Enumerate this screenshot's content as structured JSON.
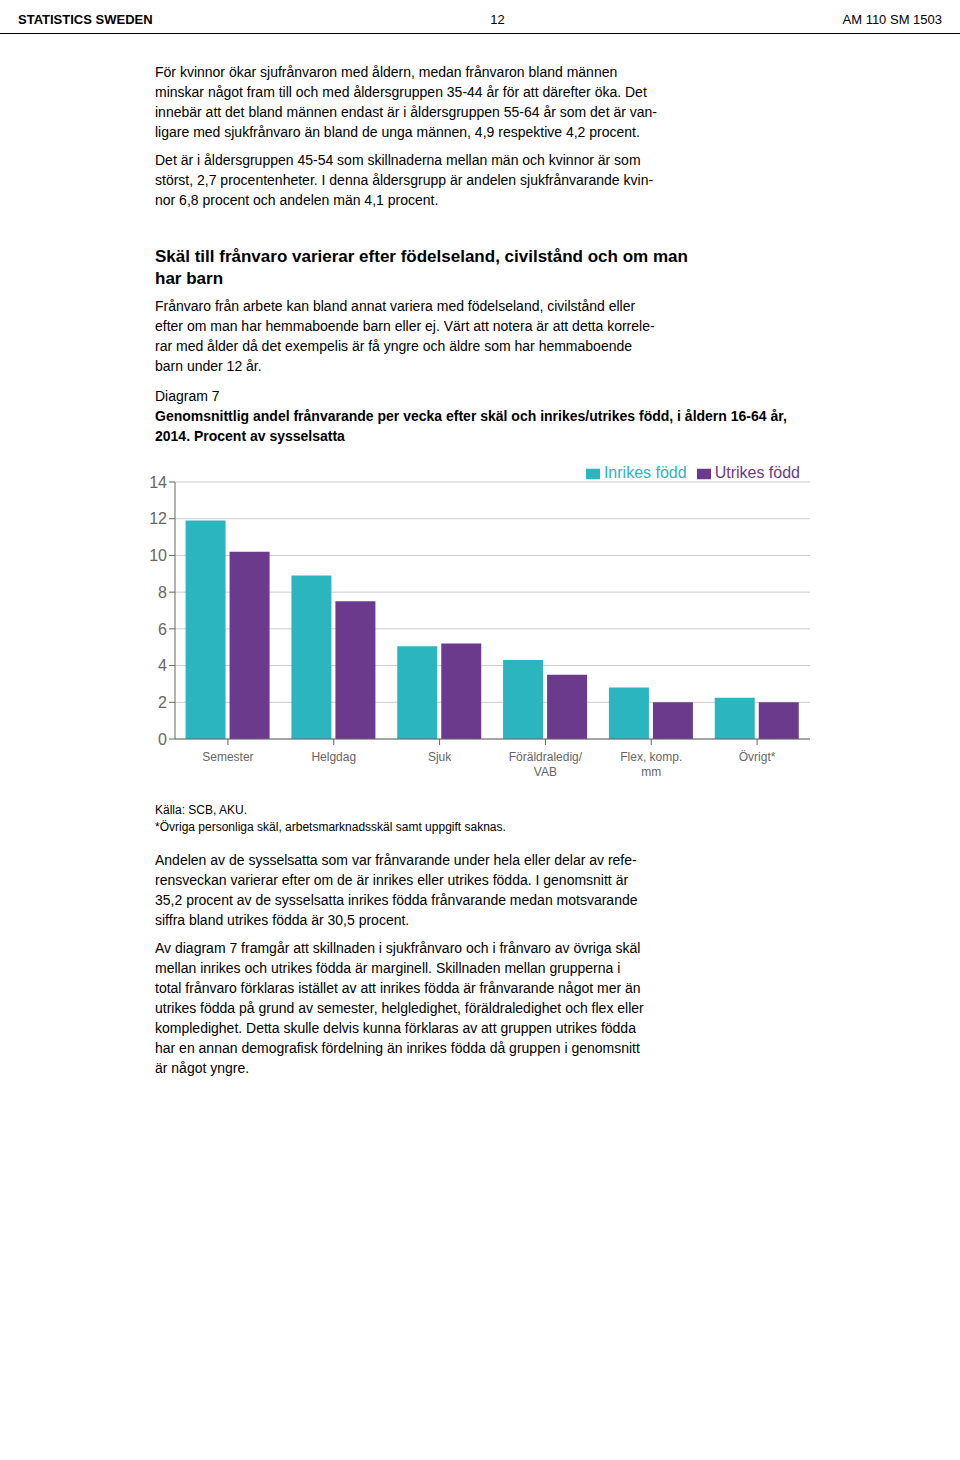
{
  "chart_data": {
    "type": "bar",
    "title": "Genomsnittlig andel frånvarande per vecka efter skäl och inrikes/utrikes född, i åldern 16-64 år, 2014. Procent av sysselsatta",
    "categories": [
      "Semester",
      "Helgdag",
      "Sjuk",
      "Föräldraledig/\nVAB",
      "Flex, komp.\nmm",
      "Övrigt*"
    ],
    "series": [
      {
        "name": "Inrikes född",
        "color": "#2BB5BE",
        "values": [
          11.9,
          8.9,
          5.05,
          4.3,
          2.8,
          2.25
        ]
      },
      {
        "name": "Utrikes född",
        "color": "#6B3A8C",
        "values": [
          10.2,
          7.5,
          5.2,
          3.5,
          2.0,
          2.0
        ]
      }
    ],
    "ylim": [
      0,
      14
    ],
    "yticks": [
      0,
      2,
      4,
      6,
      8,
      10,
      12,
      14
    ],
    "grid": true,
    "legend": "upper right",
    "annotations": [
      "STATISTICS SWEDEN",
      "12",
      "AM 110 SM 1503",
      "För kvinnor ökar sjufrånvaron med åldern, medan frånvaron bland männen",
      "minskar något fram till och med åldersgruppen 35-44 år för att därefter öka. Det",
      "innebär att det bland männen endast är i åldersgruppen 55-64 år som det är van-",
      "ligare med sjukfrånvaro än bland de unga männen, 4,9 respektive 4,2 procent.",
      "Det är i åldersgruppen 45-54 som skillnaderna mellan män och kvinnor är som",
      "störst, 2,7 procentenheter. I denna åldersgrupp är andelen sjukfrånvarande kvin-",
      "nor 6,8 procent och andelen män 4,1 procent.",
      "Skäl till frånvaro varierar efter födelseland, civilstånd och om man",
      "har barn",
      "Frånvaro från arbete kan bland annat variera med födelseland, civilstånd eller",
      "efter om man har hemmaboende barn eller ej. Värt att notera är att detta korrele-",
      "rar med ålder då det exempelis är få yngre och äldre som har hemmaboende",
      "barn under 12 år.",
      "Diagram 7",
      "Källa: SCB, AKU.",
      "*Övriga personliga skäl, arbetsmarknadsskäl samt uppgift saknas.",
      "Andelen av de sysselsatta som var frånvarande under hela eller delar av refe-",
      "rensveckan varierar efter om de är inrikes eller utrikes födda. I genomsnitt är",
      "35,2 procent av de sysselsatta inrikes födda frånvarande medan motsvarande",
      "siffra bland utrikes födda är 30,5 procent.",
      "Av diagram 7 framgår att skillnaden i sjukfrånvaro och i frånvaro av övriga skäl",
      "mellan inrikes och utrikes födda är marginell. Skillnaden mellan grupperna i",
      "total frånvaro förklaras istället av att inrikes födda är frånvarande något mer än",
      "utrikes födda på grund av semester, helgledighet, föräldraledighet och flex eller",
      "kompledighet. Detta skulle delvis kunna förklaras av att gruppen utrikes födda",
      "har en annan demografisk fördelning än inrikes födda då gruppen i genomsnitt",
      "är något yngre."
    ]
  }
}
